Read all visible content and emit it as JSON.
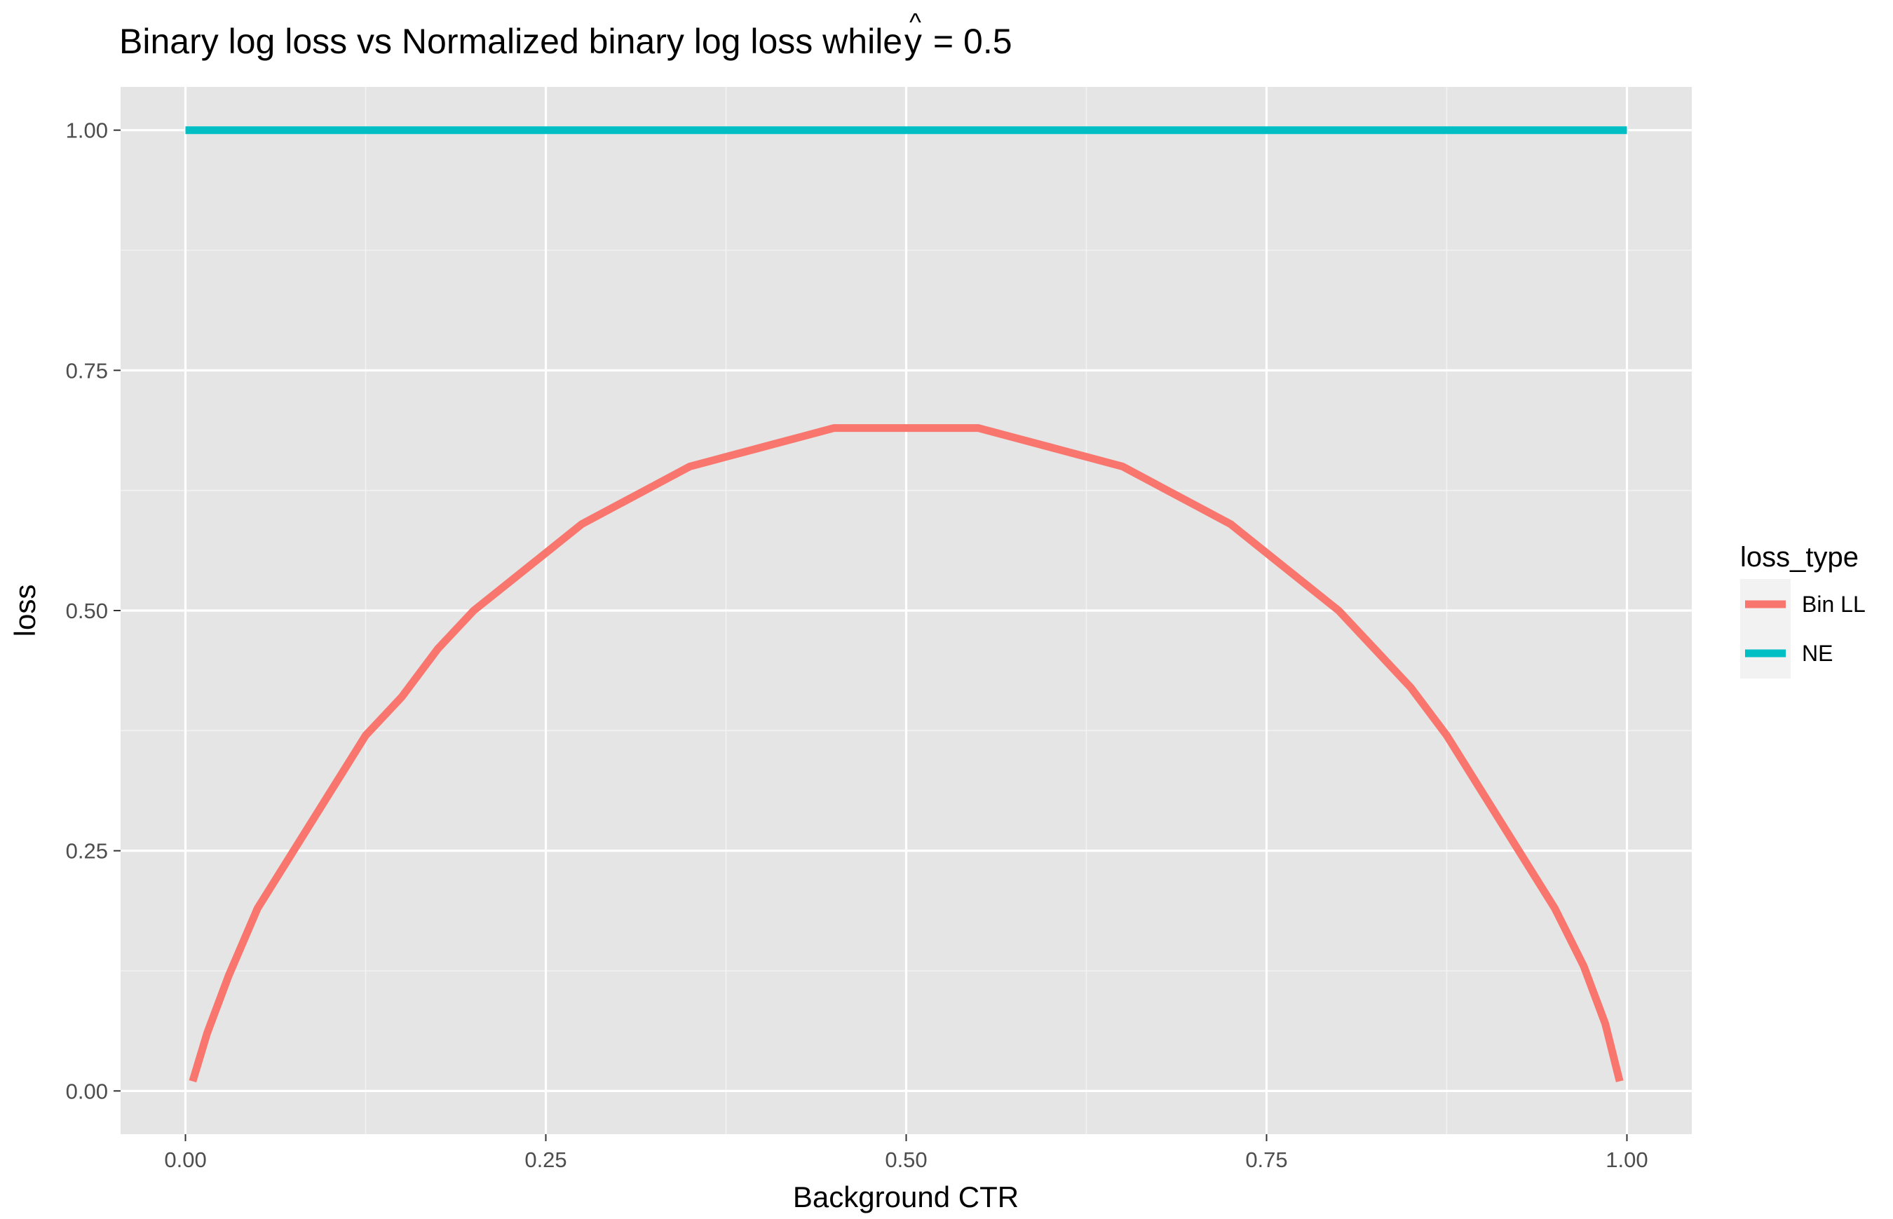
{
  "chart_data": {
    "type": "line",
    "title_main": "Binary log loss vs Normalized binary log loss while ",
    "title_hat_symbol": "^",
    "title_variable": "y",
    "title_equals": "= 0.5",
    "xlabel": "Background CTR",
    "ylabel": "loss",
    "xlim": [
      -0.045,
      1.045
    ],
    "ylim": [
      -0.045,
      1.045
    ],
    "x_ticks": [
      0,
      0.25,
      0.5,
      0.75,
      1
    ],
    "x_tick_labels": [
      "0.00",
      "0.25",
      "0.50",
      "0.75",
      "1.00"
    ],
    "y_ticks": [
      0,
      0.25,
      0.5,
      0.75,
      1
    ],
    "y_tick_labels": [
      "0.00",
      "0.25",
      "0.50",
      "0.75",
      "1.00"
    ],
    "grid": true,
    "legend": {
      "title": "loss_type",
      "placement": "right"
    },
    "series": [
      {
        "name": "Bin LL",
        "color": "#F8766D",
        "x": [
          0.005,
          0.015,
          0.03,
          0.05,
          0.075,
          0.1,
          0.125,
          0.15,
          0.175,
          0.2,
          0.225,
          0.25,
          0.275,
          0.3,
          0.325,
          0.35,
          0.375,
          0.4,
          0.425,
          0.45,
          0.475,
          0.5,
          0.525,
          0.55,
          0.575,
          0.6,
          0.625,
          0.65,
          0.675,
          0.7,
          0.725,
          0.75,
          0.775,
          0.8,
          0.825,
          0.85,
          0.875,
          0.9,
          0.925,
          0.95,
          0.97,
          0.985,
          0.995
        ],
        "y": [
          0.01,
          0.06,
          0.12,
          0.19,
          0.25,
          0.31,
          0.37,
          0.41,
          0.46,
          0.5,
          0.53,
          0.56,
          0.59,
          0.61,
          0.63,
          0.65,
          0.66,
          0.67,
          0.68,
          0.69,
          0.69,
          0.69,
          0.69,
          0.69,
          0.68,
          0.67,
          0.66,
          0.65,
          0.63,
          0.61,
          0.59,
          0.56,
          0.53,
          0.5,
          0.46,
          0.42,
          0.37,
          0.31,
          0.25,
          0.19,
          0.13,
          0.07,
          0.01
        ]
      },
      {
        "name": "NE",
        "color": "#00BFC4",
        "x": [
          0,
          1
        ],
        "y": [
          1,
          1
        ]
      }
    ]
  }
}
